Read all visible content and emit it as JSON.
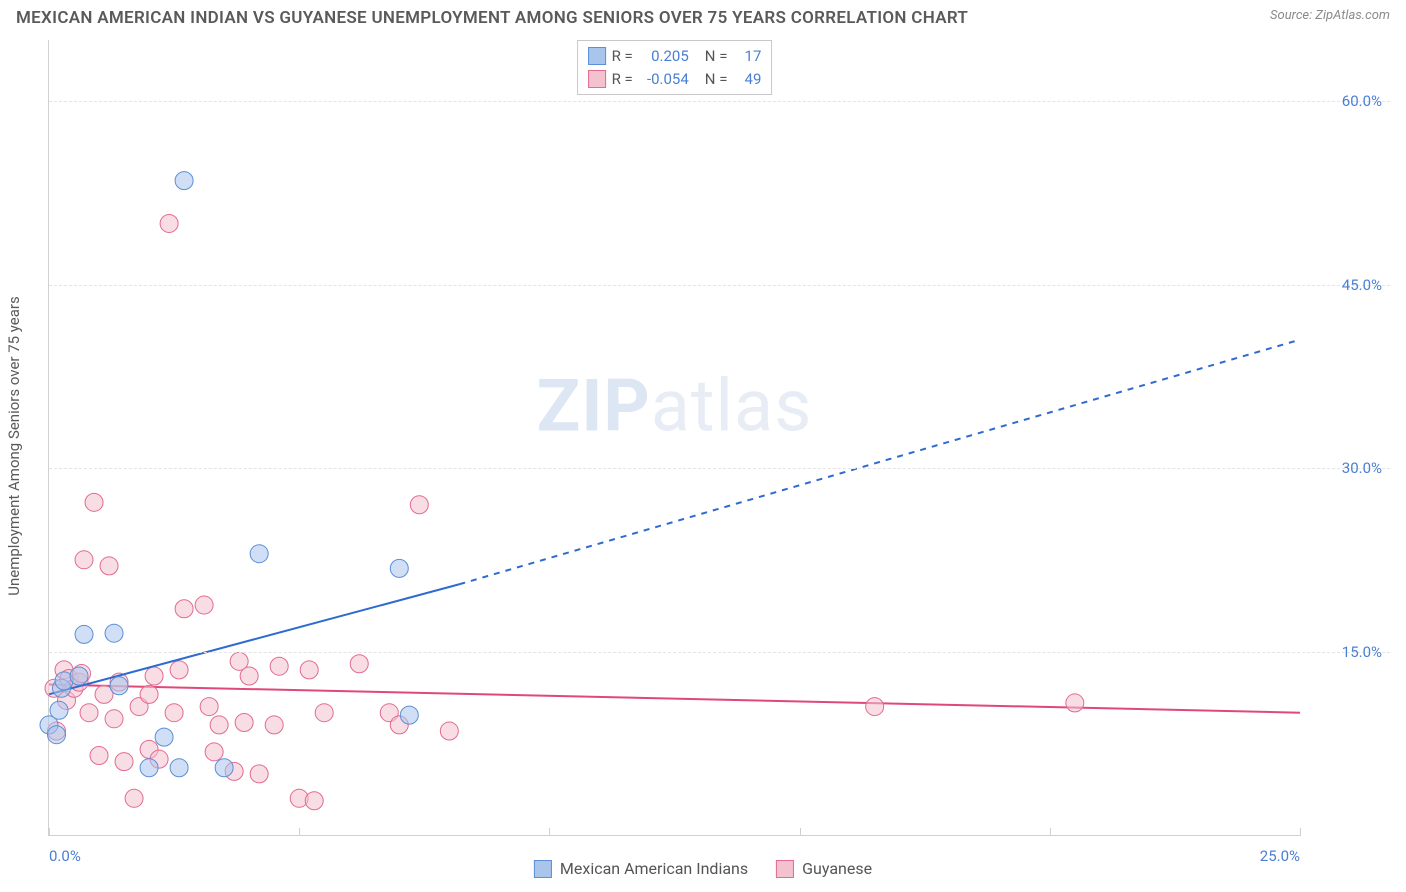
{
  "header": {
    "title": "MEXICAN AMERICAN INDIAN VS GUYANESE UNEMPLOYMENT AMONG SENIORS OVER 75 YEARS CORRELATION CHART",
    "source": "Source: ZipAtlas.com"
  },
  "watermark": {
    "zip": "ZIP",
    "atlas": "atlas"
  },
  "chart": {
    "type": "scatter",
    "y_axis_label": "Unemployment Among Seniors over 75 years",
    "xlim": [
      0,
      25
    ],
    "ylim": [
      0,
      65
    ],
    "y_ticks": [
      15,
      30,
      45,
      60
    ],
    "y_tick_labels": [
      "15.0%",
      "30.0%",
      "45.0%",
      "60.0%"
    ],
    "x_ticks": [
      0,
      5,
      10,
      15,
      20,
      25
    ],
    "x_tick_labels": [
      "0.0%",
      "",
      "",
      "",
      "",
      "25.0%"
    ],
    "grid_color": "#e4e4e4",
    "axis_color": "#d0d0d0",
    "background_color": "#ffffff",
    "tick_font_color": "#4a7fd4",
    "tick_font_size": 15,
    "label_font_color": "#5a5a5a",
    "label_font_size": 15,
    "point_radius": 9,
    "point_opacity": 0.55,
    "series": [
      {
        "name": "Mexican American Indians",
        "fill": "#a9c5ec",
        "stroke": "#5b8fd6",
        "r_value": "0.205",
        "n_value": "17",
        "trend": {
          "x1": 0,
          "y1": 11.5,
          "x2_solid": 8.2,
          "y2_solid": 20.5,
          "x2": 25,
          "y2": 40.5,
          "stroke": "#2e6bd0",
          "width": 2
        },
        "points": [
          [
            0.0,
            9.0
          ],
          [
            0.15,
            8.2
          ],
          [
            0.2,
            10.2
          ],
          [
            0.25,
            12.0
          ],
          [
            0.3,
            12.6
          ],
          [
            0.6,
            13.0
          ],
          [
            0.7,
            16.4
          ],
          [
            1.3,
            16.5
          ],
          [
            1.4,
            12.2
          ],
          [
            2.3,
            8.0
          ],
          [
            2.0,
            5.5
          ],
          [
            2.6,
            5.5
          ],
          [
            2.7,
            53.5
          ],
          [
            4.2,
            23.0
          ],
          [
            7.0,
            21.8
          ],
          [
            7.2,
            9.8
          ],
          [
            3.5,
            5.5
          ]
        ]
      },
      {
        "name": "Guyanese",
        "fill": "#f4c1cf",
        "stroke": "#e36b90",
        "r_value": "-0.054",
        "n_value": "49",
        "trend": {
          "x1": 0,
          "y1": 12.3,
          "x2_solid": 25,
          "y2_solid": 10.0,
          "x2": 25,
          "y2": 10.0,
          "stroke": "#e0487a",
          "width": 2
        },
        "points": [
          [
            0.1,
            12.0
          ],
          [
            0.15,
            8.5
          ],
          [
            0.3,
            13.5
          ],
          [
            0.35,
            11.0
          ],
          [
            0.4,
            12.8
          ],
          [
            0.5,
            12.0
          ],
          [
            0.6,
            12.5
          ],
          [
            0.65,
            13.2
          ],
          [
            0.7,
            22.5
          ],
          [
            0.8,
            10.0
          ],
          [
            0.9,
            27.2
          ],
          [
            1.0,
            6.5
          ],
          [
            1.1,
            11.5
          ],
          [
            1.2,
            22.0
          ],
          [
            1.3,
            9.5
          ],
          [
            1.4,
            12.5
          ],
          [
            1.5,
            6.0
          ],
          [
            1.8,
            10.5
          ],
          [
            2.0,
            7.0
          ],
          [
            2.0,
            11.5
          ],
          [
            2.1,
            13.0
          ],
          [
            2.2,
            6.2
          ],
          [
            2.4,
            50.0
          ],
          [
            2.5,
            10.0
          ],
          [
            2.6,
            13.5
          ],
          [
            2.7,
            18.5
          ],
          [
            3.1,
            18.8
          ],
          [
            3.2,
            10.5
          ],
          [
            3.3,
            6.8
          ],
          [
            3.4,
            9.0
          ],
          [
            3.7,
            5.2
          ],
          [
            3.8,
            14.2
          ],
          [
            3.9,
            9.2
          ],
          [
            4.0,
            13.0
          ],
          [
            4.2,
            5.0
          ],
          [
            4.5,
            9.0
          ],
          [
            4.6,
            13.8
          ],
          [
            5.0,
            3.0
          ],
          [
            5.2,
            13.5
          ],
          [
            5.3,
            2.8
          ],
          [
            5.5,
            10.0
          ],
          [
            6.2,
            14.0
          ],
          [
            6.8,
            10.0
          ],
          [
            7.0,
            9.0
          ],
          [
            7.4,
            27.0
          ],
          [
            8.0,
            8.5
          ],
          [
            16.5,
            10.5
          ],
          [
            20.5,
            10.8
          ],
          [
            1.7,
            3.0
          ]
        ]
      }
    ]
  },
  "legend_top": {
    "r_label": "R =",
    "n_label": "N ="
  }
}
